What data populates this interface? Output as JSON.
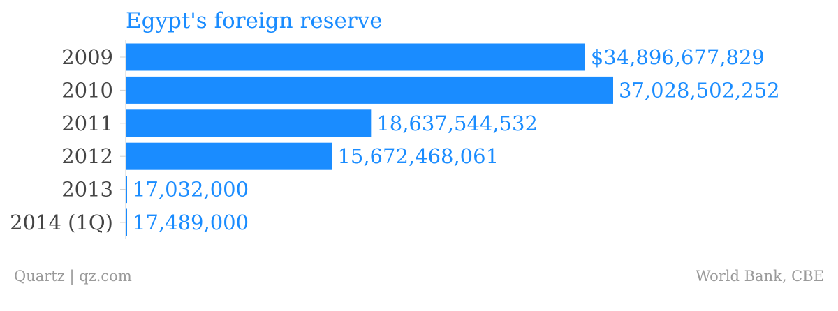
{
  "chart_data": {
    "type": "bar",
    "orientation": "horizontal",
    "title": "Egypt's foreign reserve",
    "categories": [
      "2009",
      "2010",
      "2011",
      "2012",
      "2013",
      "2014 (1Q)"
    ],
    "values": [
      34896677829,
      37028502252,
      18637544532,
      15672468061,
      17032000,
      17489000
    ],
    "value_labels": [
      "$34,896,677,829",
      "37,028,502,252",
      "18,637,544,532",
      "15,672,468,061",
      "17,032,000",
      "17,489,000"
    ],
    "xlim": [
      0,
      37028502252
    ],
    "grid": false,
    "legend": "none"
  },
  "footer": {
    "left": "Quartz | qz.com",
    "right": "World Bank, CBE"
  },
  "colors": {
    "bar": "#1a8cff",
    "value_label": "#1a8cff",
    "title": "#1a8cff",
    "category_label": "#444444",
    "axis": "#cfcfcf",
    "footer": "#9a9a9a"
  }
}
